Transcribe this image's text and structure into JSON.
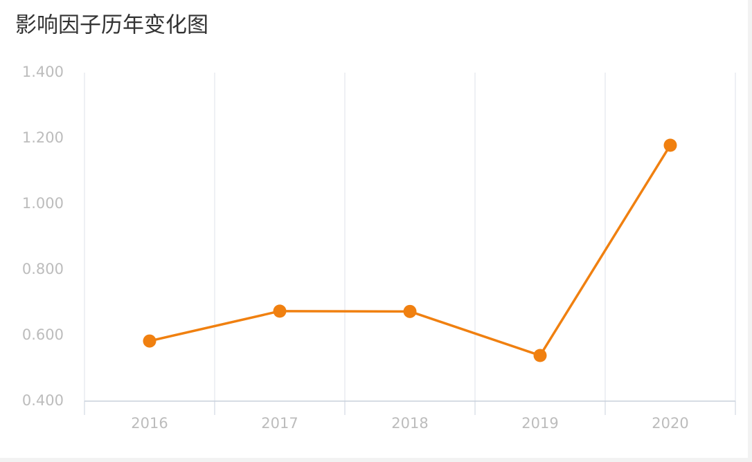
{
  "chart_data": {
    "type": "line",
    "title": "影响因子历年变化图",
    "categories": [
      "2016",
      "2017",
      "2018",
      "2019",
      "2020"
    ],
    "values": [
      0.583,
      0.674,
      0.673,
      0.539,
      1.179
    ],
    "color": "#f08010",
    "ylim": [
      0.4,
      1.4
    ],
    "yticks": [
      {
        "value": 0.4,
        "label": "0.400"
      },
      {
        "value": 0.6,
        "label": "0.600"
      },
      {
        "value": 0.8,
        "label": "0.800"
      },
      {
        "value": 1.0,
        "label": "1.000"
      },
      {
        "value": 1.2,
        "label": "1.200"
      },
      {
        "value": 1.4,
        "label": "1.400"
      }
    ]
  }
}
